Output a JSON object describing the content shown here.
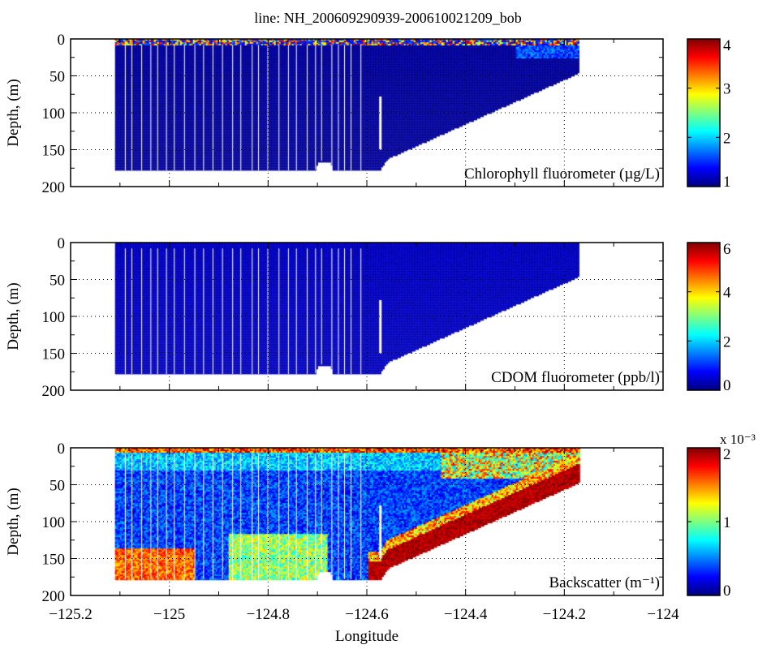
{
  "chart_data": [
    {
      "type": "scatter",
      "title": "line: NH_200609290939-200610021209_bob",
      "panel_label": "Chlorophyll fluorometer (µg/L)",
      "ylabel": "Depth, (m)",
      "xlabel": "",
      "xlim": [
        -125.2,
        -124
      ],
      "ylim": [
        200,
        0
      ],
      "yticks": [
        "0",
        "50",
        "100",
        "150",
        "200"
      ],
      "grid": true,
      "colormap": "jet",
      "clim": [
        1,
        4
      ],
      "colorbar_ticks": [
        "1",
        "2",
        "3",
        "4"
      ],
      "colorbar_exponent": ""
    },
    {
      "type": "scatter",
      "panel_label": "CDOM fluorometer (ppb/l)",
      "ylabel": "Depth, (m)",
      "xlabel": "",
      "xlim": [
        -125.2,
        -124
      ],
      "ylim": [
        200,
        0
      ],
      "yticks": [
        "0",
        "50",
        "100",
        "150",
        "200"
      ],
      "grid": true,
      "colormap": "jet",
      "clim": [
        0,
        6
      ],
      "colorbar_ticks": [
        "0",
        "2",
        "4",
        "6"
      ],
      "colorbar_exponent": ""
    },
    {
      "type": "scatter",
      "panel_label": "Backscatter (m⁻¹)",
      "ylabel": "Depth, (m)",
      "xlabel": "Longitude",
      "xlim": [
        -125.2,
        -124
      ],
      "ylim": [
        200,
        0
      ],
      "yticks": [
        "0",
        "50",
        "100",
        "150",
        "200"
      ],
      "xticks": [
        "−125.2",
        "−125",
        "−124.8",
        "−124.6",
        "−124.4",
        "−124.2",
        "−124"
      ],
      "grid": true,
      "colormap": "jet",
      "clim": [
        0,
        0.002
      ],
      "colorbar_ticks": [
        "0",
        "1",
        "2"
      ],
      "colorbar_exponent": "x 10⁻³"
    }
  ],
  "section": {
    "lon_range": [
      -125.11,
      -124.17
    ],
    "bottom_depth_profile": [
      [
        -125.11,
        178
      ],
      [
        -124.705,
        178
      ],
      [
        -124.7,
        165
      ],
      [
        -124.675,
        165
      ],
      [
        -124.67,
        178
      ],
      [
        -124.575,
        178
      ],
      [
        -124.56,
        162
      ],
      [
        -124.17,
        45
      ]
    ]
  }
}
